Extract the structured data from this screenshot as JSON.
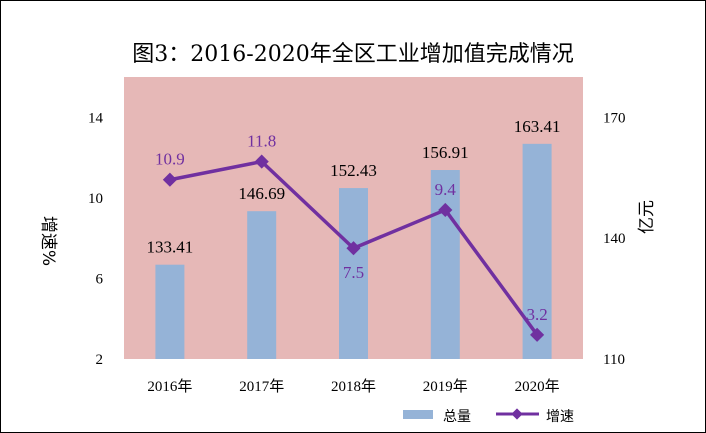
{
  "chart_data": {
    "type": "bar",
    "title": "图3：2016-2020年全区工业增加值完成情况",
    "categories": [
      "2016年",
      "2017年",
      "2018年",
      "2019年",
      "2020年"
    ],
    "series": [
      {
        "name": "总量",
        "type": "bar",
        "axis": "right",
        "values": [
          133.41,
          146.69,
          152.43,
          156.91,
          163.41
        ],
        "color": "#95b3d7"
      },
      {
        "name": "增速",
        "type": "line",
        "axis": "left",
        "values": [
          10.9,
          11.8,
          7.5,
          9.4,
          3.2
        ],
        "color": "#7030a0"
      }
    ],
    "ylabel_left": "增速%",
    "ylabel_right": "亿元",
    "ylim_left": [
      2,
      16
    ],
    "yticks_left": [
      2,
      6,
      10,
      14
    ],
    "ylim_right": [
      110,
      180
    ],
    "yticks_right": [
      110,
      140,
      170
    ],
    "plot_background": "#e6b8b7",
    "legend": "bottom-right",
    "grid": false
  }
}
